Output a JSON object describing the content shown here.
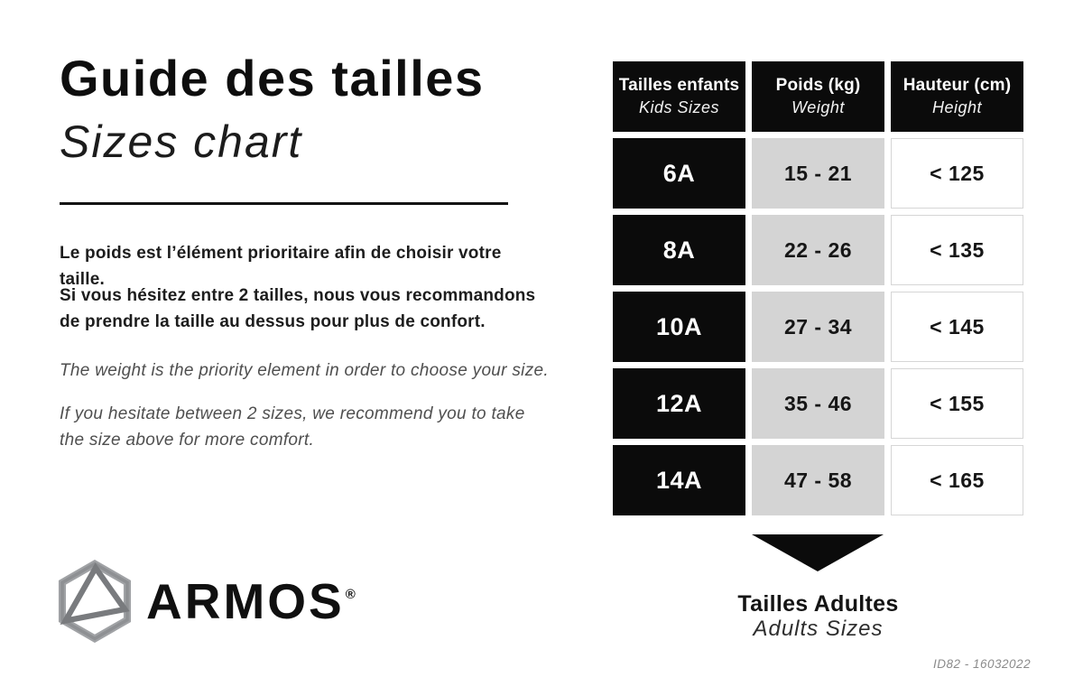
{
  "header": {
    "title_fr": "Guide des tailles",
    "title_en": "Sizes chart"
  },
  "paragraphs": {
    "fr": [
      [
        "Le poids est l’élément prioritaire afin de choisir votre taille."
      ],
      [
        "Si vous hésitez entre 2 tailles, nous vous recommandons",
        "de prendre la taille au dessus pour plus de confort."
      ]
    ],
    "en": [
      [
        "The weight is the priority element in order to choose your size."
      ],
      [
        "If you hesitate between 2 sizes, we recommend you to take",
        "the size above for more comfort."
      ]
    ]
  },
  "table": {
    "headers": [
      {
        "fr": "Tailles enfants",
        "en": "Kids Sizes"
      },
      {
        "fr": "Poids (kg)",
        "en": "Weight"
      },
      {
        "fr": "Hauteur (cm)",
        "en": "Height"
      }
    ],
    "rows": [
      {
        "size": "6A",
        "weight": "15 - 21",
        "height": "< 125"
      },
      {
        "size": "8A",
        "weight": "22 - 26",
        "height": "< 135"
      },
      {
        "size": "10A",
        "weight": "27 - 34",
        "height": "< 145"
      },
      {
        "size": "12A",
        "weight": "35 - 46",
        "height": "< 155"
      },
      {
        "size": "14A",
        "weight": "47 - 58",
        "height": "< 165"
      }
    ]
  },
  "adults": {
    "label_fr": "Tailles Adultes",
    "label_en": "Adults Sizes",
    "arrow_icon": "down-arrow-icon"
  },
  "brand": {
    "name": "ARMOS",
    "registered": "®",
    "logo_icon": "hexagon-triangle-logo"
  },
  "footer": {
    "doc_id": "ID82 - 16032022"
  },
  "colors": {
    "black": "#0b0b0b",
    "gray_cell": "#d4d4d4",
    "cell_border": "#d6d6d6",
    "secondary_text": "#4f4f4f",
    "footer_text": "#8b8b8b",
    "logo_gray_light": "#a6a8ab",
    "logo_gray_dark": "#85878a"
  }
}
